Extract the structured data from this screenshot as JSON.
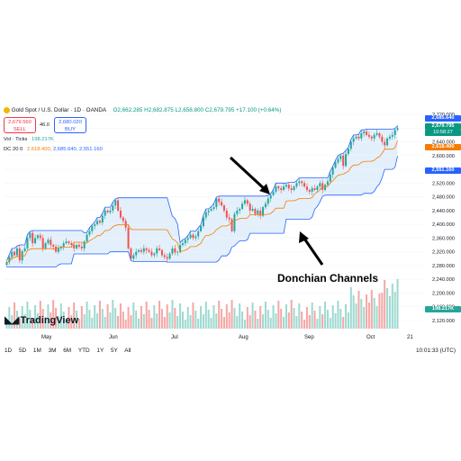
{
  "header": {
    "symbol": "Gold Spot / U.S. Dollar · 1D · OANDA",
    "ohlc": "O2,662.285 H2,682.875 L2,658.800 C2,679.795 +17.100 (+0.64%)",
    "sell_price": "2,679.560",
    "sell_label": "SELL",
    "spread": "46.0",
    "buy_price": "2,680.020",
    "buy_label": "BUY"
  },
  "indicators": {
    "vol_label": "Vol · Ticks",
    "vol_value": "198.217K",
    "dc_label": "DC 20 0",
    "dc_basis": "2,618.400",
    "dc_upper": "2,685.640",
    "dc_lower": "2,551.160"
  },
  "price_tags": {
    "upper": "2,685.640",
    "last": "2,679.795",
    "countdown": "10:58:27",
    "basis": "2,618.400",
    "lower": "2,551.160",
    "volume": "198.217K"
  },
  "timeframes": [
    "1D",
    "5D",
    "1M",
    "3M",
    "6M",
    "YTD",
    "1Y",
    "5Y",
    "All"
  ],
  "clock": "10:01:33 (UTC)",
  "logo_text": "TradingView",
  "annotation": "Donchian Channels",
  "colors": {
    "up": "#26a69a",
    "down": "#ef5350",
    "basis": "#f57c00",
    "band": "#2962ff",
    "fill": "#e3f0fb",
    "vol_up": "#9ed9d0",
    "vol_down": "#f5a7a5"
  },
  "chart_data": {
    "type": "candlestick",
    "title": "Gold Spot / U.S. Dollar · 1D · OANDA",
    "x_tick_labels": [
      "May",
      "Jun",
      "Jul",
      "Aug",
      "Sep",
      "Oct",
      "21"
    ],
    "y_tick_labels": [
      "2,720.000",
      "2,680.000",
      "2,640.000",
      "2,600.000",
      "2,560.000",
      "2,520.000",
      "2,480.000",
      "2,440.000",
      "2,400.000",
      "2,360.000",
      "2,320.000",
      "2,280.000",
      "2,240.000",
      "2,200.000",
      "2,160.000",
      "2,120.000"
    ],
    "ylim": [
      2110,
      2740
    ],
    "closes": [
      2290,
      2305,
      2320,
      2310,
      2330,
      2295,
      2322,
      2330,
      2360,
      2375,
      2345,
      2360,
      2368,
      2360,
      2330,
      2345,
      2355,
      2340,
      2335,
      2320,
      2330,
      2335,
      2345,
      2350,
      2345,
      2340,
      2330,
      2340,
      2335,
      2330,
      2350,
      2370,
      2380,
      2395,
      2400,
      2410,
      2405,
      2425,
      2440,
      2435,
      2440,
      2455,
      2470,
      2440,
      2420,
      2410,
      2390,
      2330,
      2300,
      2310,
      2320,
      2325,
      2320,
      2330,
      2325,
      2320,
      2310,
      2315,
      2330,
      2325,
      2310,
      2305,
      2300,
      2315,
      2330,
      2318,
      2320,
      2340,
      2345,
      2355,
      2360,
      2370,
      2360,
      2365,
      2380,
      2395,
      2420,
      2435,
      2440,
      2445,
      2450,
      2475,
      2465,
      2455,
      2440,
      2420,
      2415,
      2380,
      2430,
      2440,
      2445,
      2460,
      2470,
      2460,
      2440,
      2445,
      2430,
      2440,
      2425,
      2450,
      2460,
      2475,
      2485,
      2495,
      2510,
      2505,
      2500,
      2510,
      2515,
      2505,
      2500,
      2510,
      2520,
      2525,
      2520,
      2510,
      2500,
      2495,
      2505,
      2500,
      2510,
      2520,
      2500,
      2515,
      2525,
      2545,
      2565,
      2580,
      2590,
      2600,
      2570,
      2605,
      2620,
      2640,
      2650,
      2655,
      2650,
      2665,
      2670,
      2660,
      2655,
      2650,
      2660,
      2665,
      2655,
      2640,
      2630,
      2650,
      2655,
      2660,
      2675,
      2680
    ],
    "donchian_upper": 2685.64,
    "donchian_basis": 2618.4,
    "donchian_lower": 2551.16,
    "volume_last": "198.217K"
  }
}
